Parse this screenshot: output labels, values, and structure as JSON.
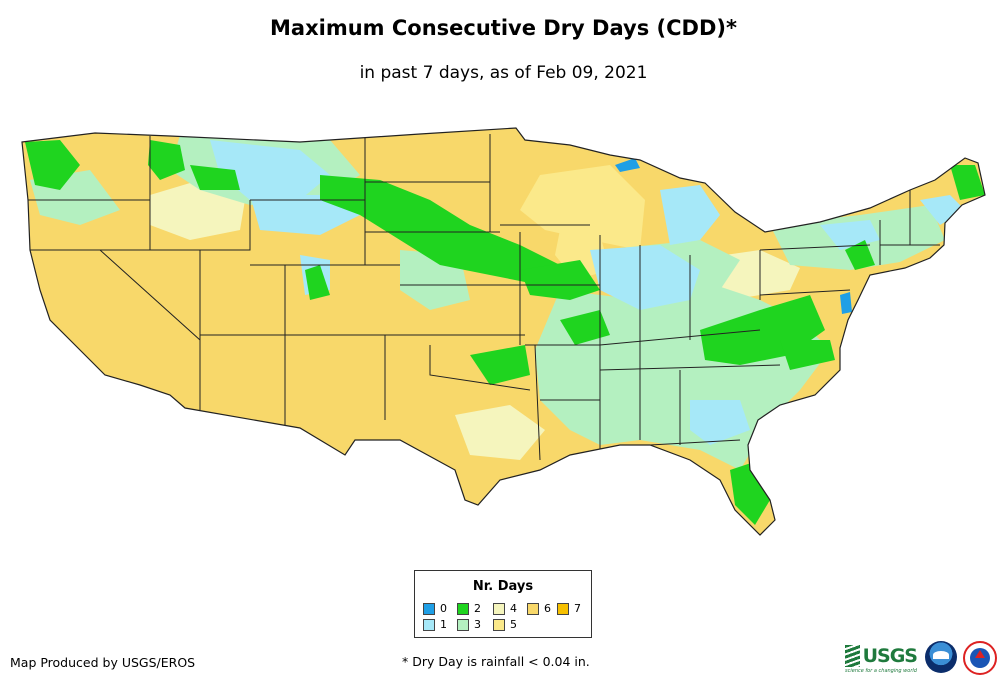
{
  "title": "Maximum Consecutive Dry Days (CDD)*",
  "subtitle": "in past 7 days, as of Feb 09, 2021",
  "legend": {
    "title": "Nr. Days",
    "items": [
      {
        "label": "0",
        "color": "#1f9fe6"
      },
      {
        "label": "1",
        "color": "#a6e8f8"
      },
      {
        "label": "2",
        "color": "#1fd41f"
      },
      {
        "label": "3",
        "color": "#b4f0c0"
      },
      {
        "label": "4",
        "color": "#f5f5bd"
      },
      {
        "label": "5",
        "color": "#fbe98a"
      },
      {
        "label": "6",
        "color": "#f8d86a"
      },
      {
        "label": "7",
        "color": "#f6c000"
      }
    ]
  },
  "footer": {
    "credit": "Map Produced by USGS/EROS",
    "note": "* Dry Day is rainfall < 0.04 in."
  },
  "logos": {
    "usgs": "USGS",
    "usgs_tagline": "science for a changing world",
    "noaa": "noaa",
    "nws": "NWS"
  },
  "colors": {
    "base": "#f8d86a",
    "state_border": "#222222"
  }
}
